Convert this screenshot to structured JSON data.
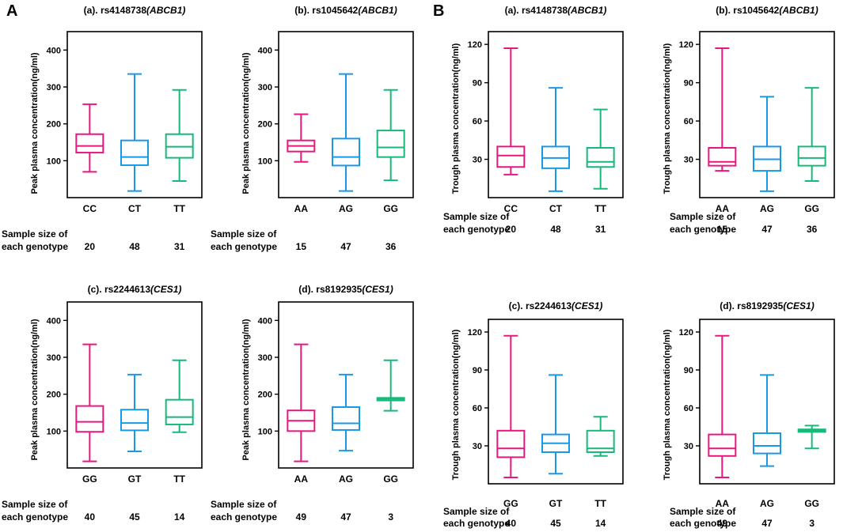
{
  "figure": {
    "panels": [
      {
        "letter": "A",
        "title": "Peak plasma concentration panels"
      },
      {
        "letter": "B",
        "title": "Trough plasma concentration panels"
      }
    ],
    "sample_label_line1": "Sample size of",
    "sample_label_line2": "each genotype",
    "colors": {
      "group1": "#e8177f",
      "group2": "#1a98e8",
      "group3": "#17b97a",
      "axis": "#000000"
    }
  },
  "chart_data": [
    {
      "type": "boxplot",
      "panel": "A",
      "title_prefix": "(a). rs4148738",
      "title_gene": "(ABCB1)",
      "ylabel": "Peak plasma concentration(ng/ml)",
      "ylim": [
        0,
        450
      ],
      "yticks": [
        100,
        200,
        300,
        400
      ],
      "categories": [
        "CC",
        "CT",
        "TT"
      ],
      "sample_sizes": [
        "20",
        "48",
        "31"
      ],
      "boxes": [
        {
          "min": 70,
          "q1": 122,
          "median": 140,
          "q3": 172,
          "max": 253
        },
        {
          "min": 18,
          "q1": 88,
          "median": 110,
          "q3": 155,
          "max": 335
        },
        {
          "min": 45,
          "q1": 108,
          "median": 138,
          "q3": 172,
          "max": 292
        }
      ]
    },
    {
      "type": "boxplot",
      "panel": "A",
      "title_prefix": "(b). rs1045642",
      "title_gene": "(ABCB1)",
      "ylabel": "Peak plasma concentration(ng/ml)",
      "ylim": [
        0,
        450
      ],
      "yticks": [
        100,
        200,
        300,
        400
      ],
      "categories": [
        "AA",
        "AG",
        "GG"
      ],
      "sample_sizes": [
        "15",
        "47",
        "36"
      ],
      "boxes": [
        {
          "min": 97,
          "q1": 125,
          "median": 140,
          "q3": 155,
          "max": 226
        },
        {
          "min": 18,
          "q1": 87,
          "median": 110,
          "q3": 160,
          "max": 335
        },
        {
          "min": 47,
          "q1": 110,
          "median": 136,
          "q3": 182,
          "max": 292
        }
      ]
    },
    {
      "type": "boxplot",
      "panel": "A",
      "title_prefix": "(c). rs2244613",
      "title_gene": "(CES1)",
      "ylabel": "Peak plasma concentration(ng/ml)",
      "ylim": [
        0,
        450
      ],
      "yticks": [
        100,
        200,
        300,
        400
      ],
      "categories": [
        "GG",
        "GT",
        "TT"
      ],
      "sample_sizes": [
        "40",
        "45",
        "14"
      ],
      "boxes": [
        {
          "min": 18,
          "q1": 98,
          "median": 125,
          "q3": 168,
          "max": 335
        },
        {
          "min": 45,
          "q1": 102,
          "median": 122,
          "q3": 158,
          "max": 253
        },
        {
          "min": 97,
          "q1": 118,
          "median": 138,
          "q3": 185,
          "max": 292
        }
      ]
    },
    {
      "type": "boxplot",
      "panel": "A",
      "title_prefix": "(d). rs8192935",
      "title_gene": "(CES1)",
      "ylabel": "Peak plasma concentration(ng/ml)",
      "ylim": [
        0,
        450
      ],
      "yticks": [
        100,
        200,
        300,
        400
      ],
      "categories": [
        "AA",
        "AG",
        "GG"
      ],
      "sample_sizes": [
        "49",
        "47",
        "3"
      ],
      "boxes": [
        {
          "min": 18,
          "q1": 100,
          "median": 128,
          "q3": 156,
          "max": 335
        },
        {
          "min": 47,
          "q1": 103,
          "median": 121,
          "q3": 165,
          "max": 253
        },
        {
          "min": 155,
          "q1": 183,
          "median": 187,
          "q3": 190,
          "max": 292
        }
      ]
    },
    {
      "type": "boxplot",
      "panel": "B",
      "title_prefix": "(a). rs4148738",
      "title_gene": "(ABCB1)",
      "ylabel": "Trough plasma concentration(ng/ml)",
      "ylim": [
        0,
        130
      ],
      "yticks": [
        30,
        60,
        90,
        120
      ],
      "categories": [
        "CC",
        "CT",
        "TT"
      ],
      "sample_sizes": [
        "20",
        "48",
        "31"
      ],
      "boxes": [
        {
          "min": 18,
          "q1": 24,
          "median": 33,
          "q3": 40,
          "max": 117
        },
        {
          "min": 5,
          "q1": 23,
          "median": 31,
          "q3": 40,
          "max": 86
        },
        {
          "min": 7,
          "q1": 24,
          "median": 28,
          "q3": 39,
          "max": 69
        }
      ]
    },
    {
      "type": "boxplot",
      "panel": "B",
      "title_prefix": "(b). rs1045642",
      "title_gene": "(ABCB1)",
      "ylabel": "Trough plasma concentration(ng/ml)",
      "ylim": [
        0,
        130
      ],
      "yticks": [
        30,
        60,
        90,
        120
      ],
      "categories": [
        "AA",
        "AG",
        "GG"
      ],
      "sample_sizes": [
        "15",
        "47",
        "36"
      ],
      "boxes": [
        {
          "min": 21,
          "q1": 25,
          "median": 28,
          "q3": 39,
          "max": 117
        },
        {
          "min": 5,
          "q1": 21,
          "median": 30,
          "q3": 40,
          "max": 79
        },
        {
          "min": 13,
          "q1": 25,
          "median": 31,
          "q3": 40,
          "max": 86
        }
      ]
    },
    {
      "type": "boxplot",
      "panel": "B",
      "title_prefix": "(c). rs2244613",
      "title_gene": "(CES1)",
      "ylabel": "Trough plasma concentration(ng/ml)",
      "ylim": [
        0,
        130
      ],
      "yticks": [
        30,
        60,
        90,
        120
      ],
      "categories": [
        "GG",
        "GT",
        "TT"
      ],
      "sample_sizes": [
        "40",
        "45",
        "14"
      ],
      "boxes": [
        {
          "min": 5,
          "q1": 21,
          "median": 28,
          "q3": 42,
          "max": 117
        },
        {
          "min": 8,
          "q1": 25,
          "median": 32,
          "q3": 39,
          "max": 86
        },
        {
          "min": 22,
          "q1": 25,
          "median": 28,
          "q3": 42,
          "max": 53
        }
      ]
    },
    {
      "type": "boxplot",
      "panel": "B",
      "title_prefix": "(d). rs8192935",
      "title_gene": "(CES1)",
      "ylabel": "Trough plasma concentration(ng/ml)",
      "ylim": [
        0,
        130
      ],
      "yticks": [
        30,
        60,
        90,
        120
      ],
      "categories": [
        "AA",
        "AG",
        "GG"
      ],
      "sample_sizes": [
        "49",
        "47",
        "3"
      ],
      "boxes": [
        {
          "min": 5,
          "q1": 22,
          "median": 28,
          "q3": 39,
          "max": 117
        },
        {
          "min": 14,
          "q1": 24,
          "median": 30,
          "q3": 40,
          "max": 86
        },
        {
          "min": 28,
          "q1": 41,
          "median": 42,
          "q3": 43,
          "max": 46
        }
      ]
    }
  ]
}
